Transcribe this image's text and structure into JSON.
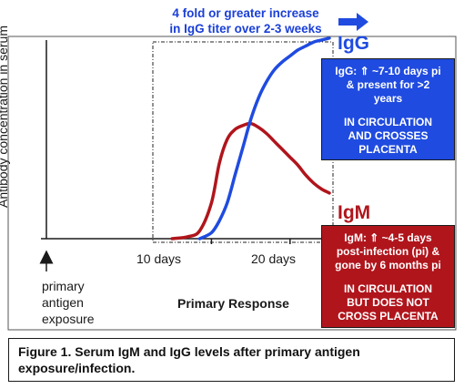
{
  "callout": {
    "line1": "4 fold or greater increase",
    "line2": "in IgG titer over 2-3 weeks"
  },
  "series_labels": {
    "igg": "IgG",
    "igm": "IgM"
  },
  "igg_box": {
    "line1": "IgG: ⇑ ~7-10 days pi",
    "line2": "& present for >2",
    "line3": "years",
    "line4": "IN CIRCULATION",
    "line5": "AND CROSSES",
    "line6": "PLACENTA"
  },
  "igm_box": {
    "line1": "IgM: ⇑ ~4-5 days",
    "line2": "post-infection (pi) &",
    "line3": "gone by 6 months pi",
    "line4": "IN CIRCULATION",
    "line5": "BUT DOES NOT",
    "line6": "CROSS PLACENTA"
  },
  "exposure_note": {
    "line1": "primary",
    "line2": "antigen",
    "line3": "exposure"
  },
  "caption": {
    "line1": "Figure 1. Serum IgM and IgG levels after primary antigen",
    "line2": "exposure/infection."
  },
  "colors": {
    "igg": "#1f4be0",
    "igm": "#b0151c",
    "igg_box": "#1f4be0",
    "igm_box": "#b0151c",
    "callout": "#1a3fd6"
  },
  "chart_data": {
    "type": "line",
    "title": "",
    "xlabel": "Primary Response",
    "ylabel": "Antibody concentration in serum",
    "xlim": [
      -11,
      25
    ],
    "ylim": [
      0,
      100
    ],
    "xticks": [
      10,
      20
    ],
    "xtick_labels": [
      "10 days",
      "20 days"
    ],
    "grid": false,
    "series": [
      {
        "name": "IgM",
        "color": "#b0151c",
        "x": [
          5,
          7,
          8.5,
          10,
          11,
          12,
          13,
          14,
          15,
          16,
          17,
          18,
          19,
          20,
          21,
          22,
          23,
          24,
          25
        ],
        "y": [
          0,
          1,
          4,
          18,
          38,
          50,
          55,
          57,
          58,
          56,
          53,
          49,
          45,
          41,
          37,
          32,
          28,
          25,
          23
        ]
      },
      {
        "name": "IgG",
        "color": "#1f4be0",
        "x": [
          8.5,
          10,
          11,
          12,
          13,
          14,
          15,
          16,
          17,
          18,
          19,
          20,
          21,
          22,
          23,
          24,
          25
        ],
        "y": [
          0,
          3,
          9,
          18,
          32,
          46,
          60,
          71,
          79,
          85,
          89,
          92,
          95,
          97,
          99,
          100,
          101
        ]
      }
    ]
  }
}
